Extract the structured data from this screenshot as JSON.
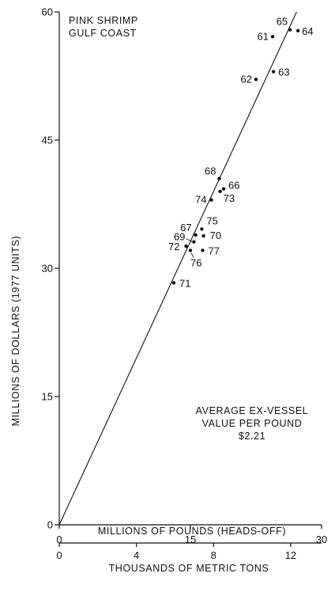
{
  "chart_data": {
    "type": "scatter",
    "title_lines": [
      "PINK SHRIMP",
      "GULF COAST"
    ],
    "xlabel": "MILLIONS OF POUNDS (HEADS-OFF)",
    "x2label": "THOUSANDS OF METRIC TONS",
    "ylabel": "MILLIONS OF DOLLARS (1977 UNITS)",
    "xlim": [
      0,
      30
    ],
    "ylim": [
      0,
      60
    ],
    "x2lim": [
      0,
      13.6
    ],
    "x_ticks": [
      0,
      15,
      30
    ],
    "x2_ticks": [
      0,
      4,
      8,
      12
    ],
    "y_ticks": [
      0,
      15,
      30,
      45,
      60
    ],
    "grid": false,
    "fit_line": {
      "slope": 2.21,
      "label_lines": [
        "AVERAGE EX-VESSEL",
        "VALUE PER POUND",
        "$2.21"
      ]
    },
    "points": [
      {
        "label": "65",
        "x": 26.4,
        "y": 57.9
      },
      {
        "label": "64",
        "x": 27.3,
        "y": 57.8
      },
      {
        "label": "61",
        "x": 24.4,
        "y": 57.1
      },
      {
        "label": "63",
        "x": 24.5,
        "y": 53.0
      },
      {
        "label": "62",
        "x": 22.5,
        "y": 52.1
      },
      {
        "label": "68",
        "x": 18.3,
        "y": 40.5
      },
      {
        "label": "66",
        "x": 18.8,
        "y": 39.3
      },
      {
        "label": "73",
        "x": 18.4,
        "y": 39.0
      },
      {
        "label": "74",
        "x": 17.4,
        "y": 38.0
      },
      {
        "label": "75",
        "x": 16.3,
        "y": 34.6
      },
      {
        "label": "67",
        "x": 15.6,
        "y": 33.9
      },
      {
        "label": "70",
        "x": 16.5,
        "y": 33.8
      },
      {
        "label": "69",
        "x": 15.4,
        "y": 33.1
      },
      {
        "label": "72",
        "x": 14.5,
        "y": 32.6
      },
      {
        "label": "76",
        "x": 15.0,
        "y": 32.1
      },
      {
        "label": "77",
        "x": 16.4,
        "y": 32.1
      },
      {
        "label": "71",
        "x": 13.1,
        "y": 28.3
      }
    ]
  }
}
